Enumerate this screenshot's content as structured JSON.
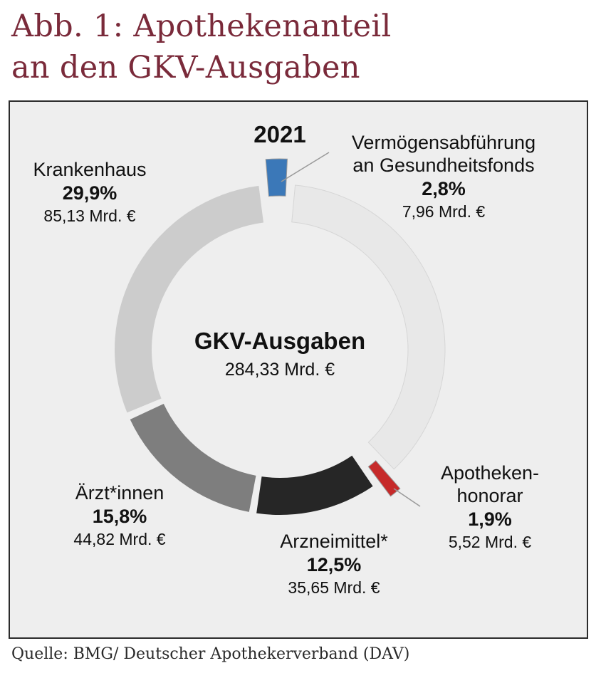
{
  "title_lines": [
    "Abb. 1: Apothekenanteil",
    "an den GKV-Ausgaben"
  ],
  "source": "Quelle: BMG/ Deutscher Apothekerverband (DAV)",
  "chart_data": {
    "type": "pie",
    "year": "2021",
    "center_title": "GKV-Ausgaben",
    "center_value": "284,33 Mrd. €",
    "total": 284.33,
    "unit": "Mrd. €",
    "segments": [
      {
        "name": "Vermögensabführung an Gesundheitsfonds",
        "name_lines": [
          "Vermögensabführung",
          "an Gesundheitsfonds"
        ],
        "percent": 2.8,
        "percent_label": "2,8%",
        "value": 7.96,
        "value_label": "7,96 Mrd. €",
        "color": "#3b78b8"
      },
      {
        "name": "Apothekenhonorar",
        "name_lines": [
          "Apotheken-",
          "honorar"
        ],
        "percent": 1.9,
        "percent_label": "1,9%",
        "value": 5.52,
        "value_label": "5,52 Mrd. €",
        "color": "#c62a2a"
      },
      {
        "name": "Arzneimittel*",
        "name_lines": [
          "Arzneimittel*"
        ],
        "percent": 12.5,
        "percent_label": "12,5%",
        "value": 35.65,
        "value_label": "35,65 Mrd. €",
        "color": "#262626"
      },
      {
        "name": "Ärzt*innen",
        "name_lines": [
          "Ärzt*innen"
        ],
        "percent": 15.8,
        "percent_label": "15,8%",
        "value": 44.82,
        "value_label": "44,82 Mrd. €",
        "color": "#7e7e7e"
      },
      {
        "name": "Krankenhaus",
        "name_lines": [
          "Krankenhaus"
        ],
        "percent": 29.9,
        "percent_label": "29,9%",
        "value": 85.13,
        "value_label": "85,13 Mrd. €",
        "color": "#cccccc"
      }
    ],
    "remainder_color": "#e8e8e8",
    "exploded": [
      "Vermögensabführung an Gesundheitsfonds",
      "Apothekenhonorar"
    ]
  }
}
